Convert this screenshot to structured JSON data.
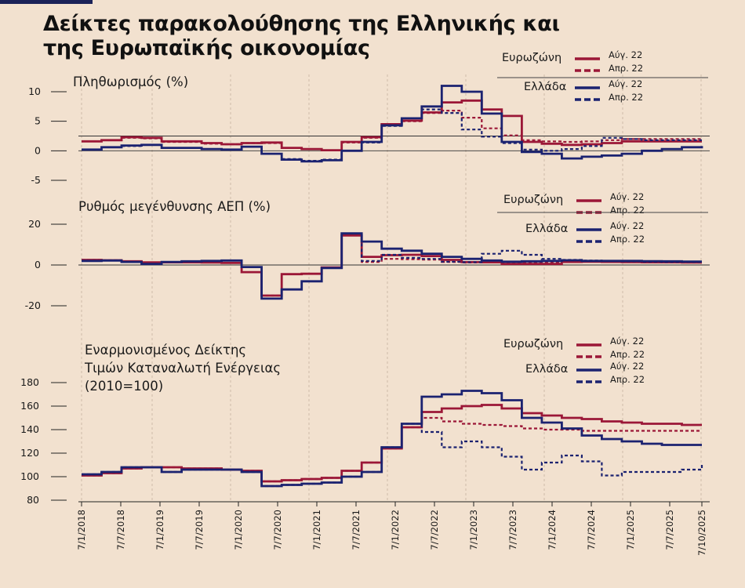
{
  "title_line1": "Δείκτες παρακολούθησης της  Ελληνικής και",
  "title_line2": "της Ευρωπαϊκής οικονομίας",
  "colors": {
    "eurozone": "#9b1737",
    "greece": "#1b2270",
    "background": "#f2e1cf",
    "accent": "#1b2258"
  },
  "x_ticks": [
    "7/1/2018",
    "7/7/2018",
    "7/1/2019",
    "7/7/2019",
    "7/1/2020",
    "7/7/2020",
    "7/1/2021",
    "7/7/2021",
    "7/1/2022",
    "7/7/2022",
    "7/1/2023",
    "7/7/2023",
    "7/1/2024",
    "7/7/2024",
    "7/1/2025",
    "7/7/2025",
    "7/10/2025"
  ],
  "chart_data": [
    {
      "type": "line",
      "title": "Πληθωρισμός (%)",
      "ylim": [
        -5,
        10
      ],
      "yticks": [
        "10",
        "5",
        "0",
        "-5"
      ],
      "reference_lines": [
        0,
        2.5
      ],
      "legend": {
        "eurozone": "Ευρωζώνη",
        "greece": "Ελλάδα",
        "solid": "Αύγ. 22",
        "dashed": "Απρ. 22"
      },
      "x": [
        "2018-01",
        "2018-04",
        "2018-07",
        "2018-10",
        "2019-01",
        "2019-04",
        "2019-07",
        "2019-10",
        "2020-01",
        "2020-04",
        "2020-07",
        "2020-10",
        "2021-01",
        "2021-04",
        "2021-07",
        "2021-10",
        "2022-01",
        "2022-04",
        "2022-07",
        "2022-10",
        "2023-01",
        "2023-04",
        "2023-07",
        "2023-10",
        "2024-01",
        "2024-04",
        "2024-07",
        "2024-10",
        "2025-01",
        "2025-04",
        "2025-07",
        "2025-10"
      ],
      "series": [
        {
          "name": "Ευρωζώνη Αύγ. 22",
          "values": [
            1.6,
            1.8,
            2.3,
            2.2,
            1.6,
            1.6,
            1.3,
            1.1,
            1.3,
            1.4,
            0.5,
            0.3,
            0.1,
            1.5,
            2.3,
            4.5,
            5.1,
            6.5,
            8.2,
            8.5,
            7.0,
            5.9,
            1.5,
            1.2,
            1.0,
            1.1,
            1.3,
            1.6,
            1.6,
            1.6,
            1.6,
            1.6
          ],
          "style": "solid"
        },
        {
          "name": "Ευρωζώνη Απρ. 22",
          "values": [
            1.6,
            1.8,
            2.2,
            2.1,
            1.5,
            1.5,
            1.2,
            1.1,
            1.3,
            1.3,
            0.5,
            0.3,
            0.1,
            1.4,
            2.2,
            4.4,
            5.0,
            6.4,
            6.8,
            5.6,
            3.8,
            2.6,
            1.8,
            1.6,
            1.5,
            1.6,
            1.8,
            2.0,
            2.0,
            2.0,
            2.0,
            2.0
          ],
          "style": "dashed"
        },
        {
          "name": "Ελλάδα Αύγ. 22",
          "values": [
            0.2,
            0.6,
            0.9,
            1.0,
            0.5,
            0.5,
            0.3,
            0.2,
            0.7,
            -0.5,
            -1.5,
            -1.8,
            -1.6,
            0.0,
            1.5,
            4.3,
            5.5,
            7.5,
            11.0,
            10.0,
            6.3,
            1.5,
            -0.2,
            -0.5,
            -1.3,
            -1.0,
            -0.8,
            -0.5,
            0.0,
            0.3,
            0.6,
            0.8
          ],
          "style": "solid"
        },
        {
          "name": "Ελλάδα Απρ. 22",
          "values": [
            0.2,
            0.6,
            0.8,
            1.0,
            0.5,
            0.5,
            0.3,
            0.2,
            0.7,
            -0.5,
            -1.4,
            -1.7,
            -1.5,
            0.0,
            1.4,
            4.2,
            5.5,
            7.0,
            6.4,
            3.6,
            2.4,
            1.3,
            0.2,
            0.0,
            0.3,
            0.8,
            2.2,
            2.0,
            1.8,
            1.8,
            1.8,
            1.8
          ],
          "style": "dashed"
        }
      ]
    },
    {
      "type": "line",
      "title": "Ρυθμός μεγένθυνσης ΑΕΠ (%)",
      "ylim": [
        -25,
        25
      ],
      "yticks": [
        "20",
        "0",
        "-20"
      ],
      "reference_lines": [
        0
      ],
      "legend": {
        "eurozone": "Ευρωζώνη",
        "greece": "Ελλάδα",
        "solid": "Αύγ. 22",
        "dashed": "Απρ. 22"
      },
      "x": [
        "2018-01",
        "2018-04",
        "2018-07",
        "2018-10",
        "2019-01",
        "2019-04",
        "2019-07",
        "2019-10",
        "2020-01",
        "2020-04",
        "2020-07",
        "2020-10",
        "2021-01",
        "2021-04",
        "2021-07",
        "2021-10",
        "2022-01",
        "2022-04",
        "2022-07",
        "2022-10",
        "2023-01",
        "2023-04",
        "2023-07",
        "2023-10",
        "2024-01",
        "2024-04",
        "2024-07",
        "2024-10",
        "2025-01",
        "2025-04",
        "2025-07",
        "2025-10"
      ],
      "series": [
        {
          "name": "Ευρωζώνη Αύγ. 22",
          "values": [
            2.5,
            2.3,
            1.8,
            1.3,
            1.3,
            1.3,
            1.2,
            1.0,
            -3.5,
            -15.0,
            -4.5,
            -4.3,
            -1.2,
            14.5,
            4.0,
            4.8,
            5.0,
            4.4,
            2.5,
            1.4,
            1.3,
            0.5,
            0.5,
            0.5,
            1.5,
            1.6,
            1.5,
            1.4,
            1.3,
            1.3,
            1.2,
            1.2
          ],
          "style": "solid"
        },
        {
          "name": "Ευρωζώνη Απρ. 22",
          "values": [
            2.5,
            2.3,
            1.8,
            1.3,
            1.3,
            1.3,
            1.2,
            1.0,
            -3.5,
            -15.0,
            -4.5,
            -4.3,
            -1.2,
            14.5,
            1.5,
            3.0,
            2.8,
            2.6,
            1.5,
            1.2,
            1.2,
            1.3,
            1.4,
            1.4,
            1.5,
            1.6,
            1.5,
            1.4,
            1.3,
            1.3,
            1.2,
            1.2
          ],
          "style": "dashed"
        },
        {
          "name": "Ελλάδα Αύγ. 22",
          "values": [
            2.0,
            2.2,
            1.5,
            0.5,
            1.5,
            1.8,
            2.0,
            2.2,
            -1.0,
            -16.5,
            -12.0,
            -8.0,
            -1.5,
            15.5,
            11.5,
            8.0,
            7.0,
            5.5,
            4.0,
            3.0,
            2.2,
            1.6,
            1.8,
            2.0,
            2.3,
            2.0,
            2.0,
            2.0,
            1.9,
            1.8,
            1.7,
            1.7
          ],
          "style": "solid"
        },
        {
          "name": "Ελλάδα Απρ. 22",
          "values": [
            2.0,
            2.2,
            1.5,
            0.5,
            1.5,
            1.8,
            2.0,
            2.2,
            -1.0,
            -16.5,
            -12.0,
            -8.0,
            -1.5,
            15.5,
            2.0,
            5.0,
            3.5,
            3.0,
            1.6,
            1.4,
            5.5,
            7.0,
            5.0,
            3.0,
            2.5,
            2.2,
            2.0,
            1.8,
            1.6,
            1.5,
            1.5,
            1.5
          ],
          "style": "dashed"
        }
      ]
    },
    {
      "type": "line",
      "title": "Εναρμονισμένος Δείκτης Τιμών Καταναλωτή Ενέργειας (2010=100)",
      "title_lines": [
        "Εναρμονισμένος Δείκτης",
        "Τιμών Καταναλωτή Ενέργειας",
        "(2010=100)"
      ],
      "ylim": [
        80,
        180
      ],
      "yticks": [
        "180",
        "160",
        "140",
        "120",
        "100",
        "80"
      ],
      "legend": {
        "eurozone": "Ευρωζώνη",
        "greece": "Ελλάδα",
        "solid": "Αύγ. 22",
        "dashed": "Απρ. 22"
      },
      "x": [
        "2018-01",
        "2018-04",
        "2018-07",
        "2018-10",
        "2019-01",
        "2019-04",
        "2019-07",
        "2019-10",
        "2020-01",
        "2020-04",
        "2020-07",
        "2020-10",
        "2021-01",
        "2021-04",
        "2021-07",
        "2021-10",
        "2022-01",
        "2022-04",
        "2022-07",
        "2022-10",
        "2023-01",
        "2023-04",
        "2023-07",
        "2023-10",
        "2024-01",
        "2024-04",
        "2024-07",
        "2024-10",
        "2025-01",
        "2025-04",
        "2025-07",
        "2025-10"
      ],
      "series": [
        {
          "name": "Ευρωζώνη Αύγ. 22",
          "values": [
            101,
            103,
            107,
            108,
            108,
            107,
            107,
            106,
            105,
            96,
            97,
            98,
            99,
            105,
            112,
            124,
            142,
            155,
            158,
            160,
            161,
            158,
            154,
            152,
            150,
            149,
            147,
            146,
            145,
            145,
            144,
            144
          ],
          "style": "solid"
        },
        {
          "name": "Ευρωζώνη Απρ. 22",
          "values": [
            101,
            103,
            107,
            108,
            108,
            107,
            107,
            106,
            105,
            96,
            97,
            98,
            99,
            105,
            112,
            124,
            142,
            150,
            147,
            145,
            144,
            143,
            141,
            140,
            140,
            139,
            139,
            139,
            139,
            139,
            139,
            139
          ],
          "style": "dashed"
        },
        {
          "name": "Ελλάδα Αύγ. 22",
          "values": [
            102,
            104,
            108,
            108,
            104,
            106,
            106,
            106,
            104,
            92,
            93,
            94,
            95,
            100,
            104,
            125,
            145,
            168,
            170,
            173,
            171,
            165,
            150,
            146,
            141,
            135,
            132,
            130,
            128,
            127,
            127,
            127
          ],
          "style": "solid"
        },
        {
          "name": "Ελλάδα Απρ. 22",
          "values": [
            102,
            104,
            108,
            108,
            104,
            106,
            106,
            106,
            104,
            92,
            93,
            94,
            95,
            100,
            104,
            125,
            145,
            138,
            125,
            130,
            125,
            117,
            106,
            112,
            118,
            113,
            101,
            104,
            104,
            104,
            106,
            110
          ],
          "style": "dashed"
        }
      ]
    }
  ]
}
